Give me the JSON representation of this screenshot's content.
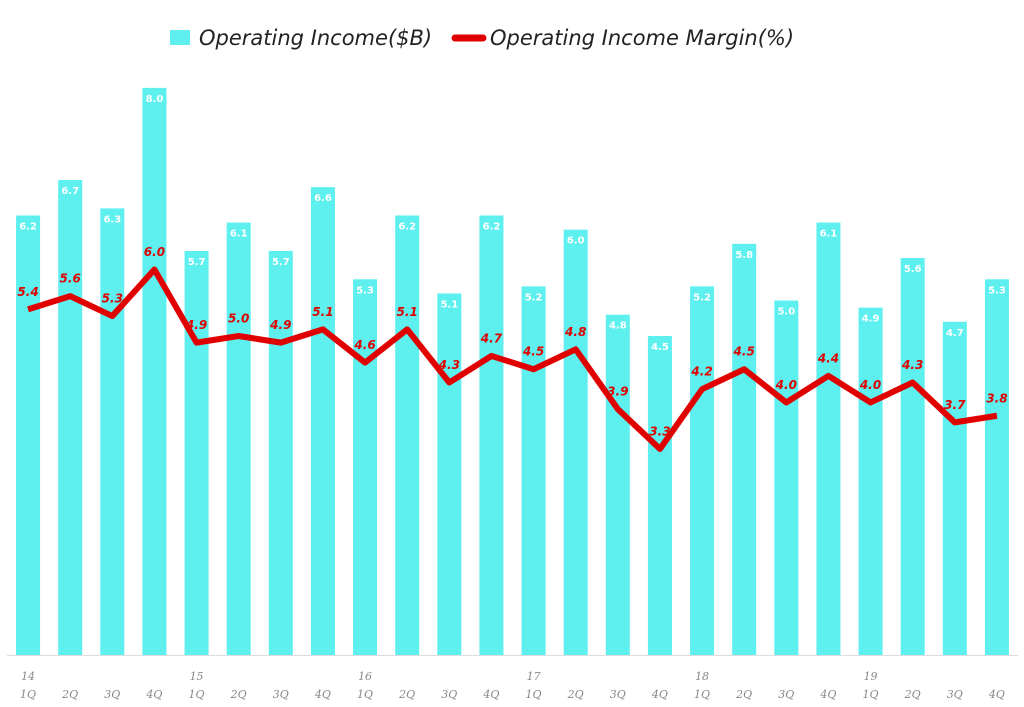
{
  "chart_data": {
    "type": "bar-line",
    "categories": [
      "1Q",
      "2Q",
      "3Q",
      "4Q",
      "1Q",
      "2Q",
      "3Q",
      "4Q",
      "1Q",
      "2Q",
      "3Q",
      "4Q",
      "1Q",
      "2Q",
      "3Q",
      "4Q",
      "1Q",
      "2Q",
      "3Q",
      "4Q",
      "1Q",
      "2Q",
      "3Q",
      "4Q"
    ],
    "category_groups": [
      "14",
      null,
      null,
      null,
      "15",
      null,
      null,
      null,
      "16",
      null,
      null,
      null,
      "17",
      null,
      null,
      null,
      "18",
      null,
      null,
      null,
      "19",
      null,
      null,
      null
    ],
    "series": [
      {
        "name": "Operating Income($B)",
        "type": "bar",
        "color": "#5ef0ef",
        "values": [
          6.2,
          6.7,
          6.3,
          8.0,
          5.7,
          6.1,
          5.7,
          6.6,
          5.3,
          6.2,
          5.1,
          6.2,
          5.2,
          6.0,
          4.8,
          4.5,
          5.2,
          5.8,
          5.0,
          6.1,
          4.9,
          5.6,
          4.7,
          5.3
        ],
        "value_labels": [
          "6.2",
          "6.7",
          "6.3",
          "8.0",
          "5.7",
          "6.1",
          "5.7",
          "6.6",
          "5.3",
          "6.2",
          "5.1",
          "6.2",
          "5.2",
          "6.0",
          "4.8",
          "4.5",
          "5.2",
          "5.8",
          "5.0",
          "6.1",
          "4.9",
          "5.6",
          "4.7",
          "5.3"
        ]
      },
      {
        "name": "Operating Income Margin(%)",
        "type": "line",
        "axis": "y2",
        "color": "#e00000",
        "values": [
          5.4,
          5.6,
          5.3,
          6.0,
          4.9,
          5.0,
          4.9,
          5.1,
          4.6,
          5.1,
          4.3,
          4.7,
          4.5,
          4.8,
          3.9,
          3.3,
          4.2,
          4.5,
          4.0,
          4.4,
          4.0,
          4.3,
          3.7,
          3.8
        ],
        "value_labels": [
          "5.4",
          "5.6",
          "5.3",
          "6.0",
          "4.9",
          "5.0",
          "4.9",
          "5.1",
          "4.6",
          "5.1",
          "4.3",
          "4.7",
          "4.5",
          "4.8",
          "3.9",
          "3.3",
          "4.2",
          "4.5",
          "4.0",
          "4.4",
          "4.0",
          "4.3",
          "3.7",
          "3.8"
        ]
      }
    ],
    "ylim": [
      0,
      9
    ],
    "y2lim": [
      0.2,
      9.8
    ],
    "legend": "top"
  }
}
